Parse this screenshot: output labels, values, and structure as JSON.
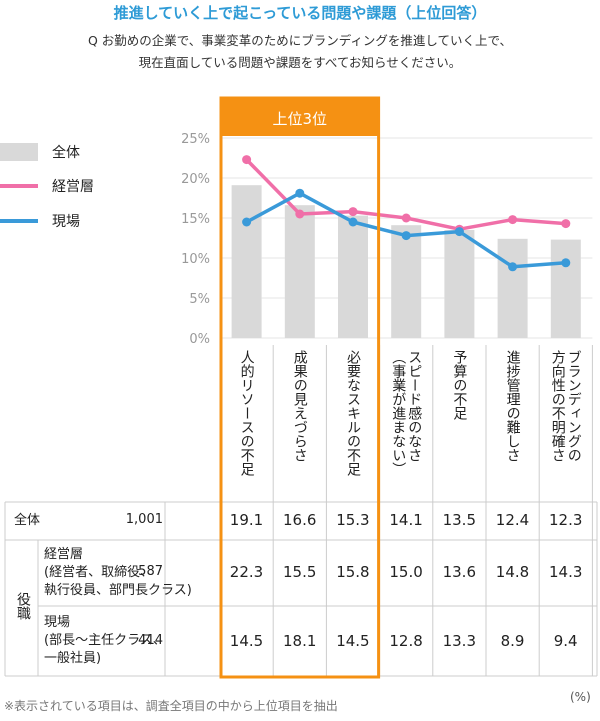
{
  "title": "推進していく上で起こっている問題や課題（上位回答）",
  "question": {
    "line1": "Q お勤めの企業で、事業変革のためにブランディングを推進していく上で、",
    "line2": "現在直面している問題や課題をすべてお知らせください。"
  },
  "top3_label": "上位3位",
  "legend": {
    "all": "全体",
    "exec": "経営層",
    "field": "現場"
  },
  "colors": {
    "bar": "#d9d9d9",
    "exec": "#f06fa8",
    "field": "#3a9ad9",
    "highlight": "#f59113",
    "title": "#2e9bd6"
  },
  "chart_data": {
    "type": "bar",
    "title": "推進していく上で起こっている問題や課題（上位回答）",
    "categories": [
      "人的リソースの不足",
      "成果の見えづらさ",
      "必要なスキルの不足",
      "スピード感のなさ（事業が進まない）",
      "予算の不足",
      "進捗管理の難しさ",
      "ブランディングの方向性の不明確さ"
    ],
    "category_lines": [
      [
        "人的リソースの不足"
      ],
      [
        "成果の見えづらさ"
      ],
      [
        "必要なスキルの不足"
      ],
      [
        "スピード感のなさ",
        "（事業が進まない）"
      ],
      [
        "予算の不足"
      ],
      [
        "進捗管理の難しさ"
      ],
      [
        "ブランディングの",
        "方向性の不明確さ"
      ]
    ],
    "series": [
      {
        "name": "全体",
        "kind": "bar",
        "values": [
          19.1,
          16.6,
          15.3,
          14.1,
          13.5,
          12.4,
          12.3
        ]
      },
      {
        "name": "経営層",
        "kind": "line",
        "values": [
          22.3,
          15.5,
          15.8,
          15.0,
          13.6,
          14.8,
          14.3
        ]
      },
      {
        "name": "現場",
        "kind": "line",
        "values": [
          14.5,
          18.1,
          14.5,
          12.8,
          13.3,
          8.9,
          9.4
        ]
      }
    ],
    "yticks": [
      "0%",
      "5%",
      "10%",
      "15%",
      "20%",
      "25%"
    ],
    "ylim": [
      0,
      25
    ],
    "unit": "%"
  },
  "table": {
    "group_label": "役職",
    "rows": [
      {
        "label1": "全体",
        "label2": "",
        "label3": "",
        "n": "1,001",
        "values": [
          "19.1",
          "16.6",
          "15.3",
          "14.1",
          "13.5",
          "12.4",
          "12.3"
        ]
      },
      {
        "label1": "経営層",
        "label2": "(経営者、取締役、",
        "label3": "執行役員、部門長クラス)",
        "n": "587",
        "values": [
          "22.3",
          "15.5",
          "15.8",
          "15.0",
          "13.6",
          "14.8",
          "14.3"
        ]
      },
      {
        "label1": "現場",
        "label2": "(部長〜主任クラス、",
        "label3": "一般社員)",
        "n": "414",
        "values": [
          "14.5",
          "18.1",
          "14.5",
          "12.8",
          "13.3",
          "8.9",
          "9.4"
        ]
      }
    ]
  },
  "footnote": "※表示されている項目は、調査全項目の中から上位項目を抽出",
  "unit_label": "(%)"
}
